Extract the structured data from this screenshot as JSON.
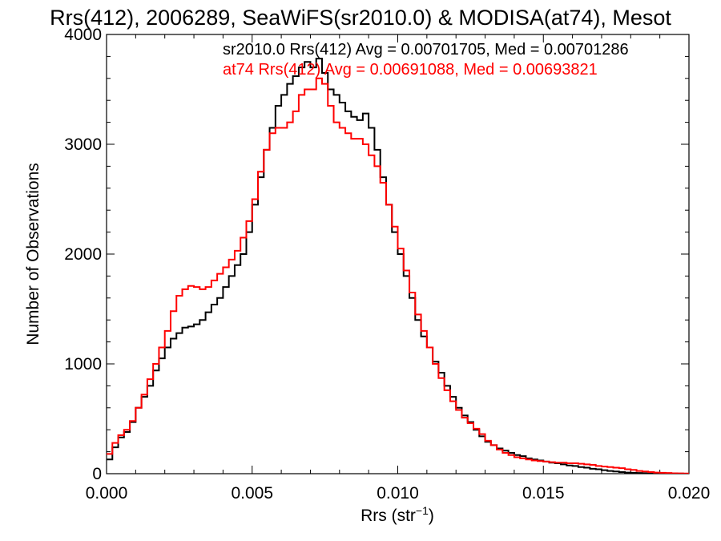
{
  "chart_data": {
    "type": "line",
    "title": "Rrs(412), 2006289, SeaWiFS(sr2010.0) & MODISA(at74), Mesot",
    "xlabel_base": "Rrs (str",
    "xlabel_sup": "−1",
    "xlabel_end": ")",
    "ylabel": "Number of Observations",
    "xlim": [
      0.0,
      0.02
    ],
    "ylim": [
      0,
      4000
    ],
    "xticks": [
      0.0,
      0.005,
      0.01,
      0.015,
      0.02
    ],
    "xtick_labels": [
      "0.000",
      "0.005",
      "0.010",
      "0.015",
      "0.020"
    ],
    "yticks": [
      0,
      1000,
      2000,
      3000,
      4000
    ],
    "ytick_labels": [
      "0",
      "1000",
      "2000",
      "3000",
      "4000"
    ],
    "grid": false,
    "legend_position": "top-right",
    "step": true,
    "series": [
      {
        "name": "sr2010.0 Rrs(412) Avg = 0.00701705, Med = 0.00701286",
        "color": "#000000",
        "points": [
          [
            0.0,
            130
          ],
          [
            0.0002,
            240
          ],
          [
            0.0004,
            330
          ],
          [
            0.0006,
            380
          ],
          [
            0.0008,
            470
          ],
          [
            0.001,
            600
          ],
          [
            0.0012,
            700
          ],
          [
            0.0014,
            800
          ],
          [
            0.0016,
            940
          ],
          [
            0.0018,
            1050
          ],
          [
            0.002,
            1150
          ],
          [
            0.0022,
            1230
          ],
          [
            0.0024,
            1280
          ],
          [
            0.0026,
            1330
          ],
          [
            0.0028,
            1340
          ],
          [
            0.003,
            1360
          ],
          [
            0.0032,
            1400
          ],
          [
            0.0034,
            1470
          ],
          [
            0.0036,
            1540
          ],
          [
            0.0038,
            1600
          ],
          [
            0.004,
            1700
          ],
          [
            0.0042,
            1800
          ],
          [
            0.0044,
            1900
          ],
          [
            0.0046,
            2000
          ],
          [
            0.0048,
            2200
          ],
          [
            0.005,
            2450
          ],
          [
            0.0052,
            2700
          ],
          [
            0.0054,
            2950
          ],
          [
            0.0056,
            3150
          ],
          [
            0.0058,
            3350
          ],
          [
            0.006,
            3450
          ],
          [
            0.0062,
            3550
          ],
          [
            0.0064,
            3620
          ],
          [
            0.0066,
            3700
          ],
          [
            0.0068,
            3750
          ],
          [
            0.007,
            3700
          ],
          [
            0.0072,
            3780
          ],
          [
            0.0074,
            3650
          ],
          [
            0.0076,
            3500
          ],
          [
            0.0078,
            3450
          ],
          [
            0.008,
            3380
          ],
          [
            0.0082,
            3300
          ],
          [
            0.0084,
            3250
          ],
          [
            0.0086,
            3220
          ],
          [
            0.0088,
            3280
          ],
          [
            0.009,
            3150
          ],
          [
            0.0092,
            2950
          ],
          [
            0.0094,
            2700
          ],
          [
            0.0096,
            2450
          ],
          [
            0.0098,
            2200
          ],
          [
            0.01,
            2000
          ],
          [
            0.0102,
            1800
          ],
          [
            0.0104,
            1600
          ],
          [
            0.0106,
            1400
          ],
          [
            0.0108,
            1250
          ],
          [
            0.011,
            1150
          ],
          [
            0.0112,
            1020
          ],
          [
            0.0114,
            920
          ],
          [
            0.0116,
            800
          ],
          [
            0.0118,
            700
          ],
          [
            0.012,
            600
          ],
          [
            0.0122,
            530
          ],
          [
            0.0124,
            470
          ],
          [
            0.0126,
            400
          ],
          [
            0.0128,
            340
          ],
          [
            0.013,
            290
          ],
          [
            0.0132,
            260
          ],
          [
            0.0134,
            230
          ],
          [
            0.0136,
            210
          ],
          [
            0.0138,
            190
          ],
          [
            0.014,
            170
          ],
          [
            0.0142,
            160
          ],
          [
            0.0144,
            140
          ],
          [
            0.0146,
            130
          ],
          [
            0.0148,
            120
          ],
          [
            0.015,
            110
          ],
          [
            0.0152,
            100
          ],
          [
            0.0154,
            95
          ],
          [
            0.0156,
            85
          ],
          [
            0.0158,
            75
          ],
          [
            0.016,
            70
          ],
          [
            0.0162,
            60
          ],
          [
            0.0164,
            55
          ],
          [
            0.0166,
            45
          ],
          [
            0.0168,
            40
          ],
          [
            0.017,
            32
          ],
          [
            0.0172,
            25
          ],
          [
            0.0174,
            20
          ],
          [
            0.0176,
            15
          ],
          [
            0.0178,
            10
          ],
          [
            0.018,
            8
          ],
          [
            0.0182,
            6
          ],
          [
            0.0184,
            5
          ],
          [
            0.0186,
            4
          ],
          [
            0.0188,
            3
          ],
          [
            0.019,
            2
          ],
          [
            0.0192,
            2
          ],
          [
            0.0194,
            1
          ],
          [
            0.0196,
            1
          ],
          [
            0.0198,
            0
          ]
        ]
      },
      {
        "name": "at74 Rrs(412) Avg = 0.00691088, Med = 0.00693821",
        "color": "#ff0000",
        "points": [
          [
            0.0,
            180
          ],
          [
            0.0002,
            280
          ],
          [
            0.0004,
            350
          ],
          [
            0.0006,
            400
          ],
          [
            0.0008,
            480
          ],
          [
            0.001,
            600
          ],
          [
            0.0012,
            720
          ],
          [
            0.0014,
            860
          ],
          [
            0.0016,
            1000
          ],
          [
            0.0018,
            1150
          ],
          [
            0.002,
            1300
          ],
          [
            0.0022,
            1480
          ],
          [
            0.0024,
            1620
          ],
          [
            0.0026,
            1680
          ],
          [
            0.0028,
            1710
          ],
          [
            0.003,
            1700
          ],
          [
            0.0032,
            1680
          ],
          [
            0.0034,
            1700
          ],
          [
            0.0036,
            1760
          ],
          [
            0.0038,
            1820
          ],
          [
            0.004,
            1880
          ],
          [
            0.0042,
            1950
          ],
          [
            0.0044,
            2030
          ],
          [
            0.0046,
            2150
          ],
          [
            0.0048,
            2300
          ],
          [
            0.005,
            2500
          ],
          [
            0.0052,
            2750
          ],
          [
            0.0054,
            2950
          ],
          [
            0.0056,
            3100
          ],
          [
            0.0058,
            3150
          ],
          [
            0.006,
            3150
          ],
          [
            0.0062,
            3200
          ],
          [
            0.0064,
            3300
          ],
          [
            0.0066,
            3450
          ],
          [
            0.0068,
            3500
          ],
          [
            0.007,
            3500
          ],
          [
            0.0072,
            3600
          ],
          [
            0.0074,
            3550
          ],
          [
            0.0076,
            3350
          ],
          [
            0.0078,
            3200
          ],
          [
            0.008,
            3150
          ],
          [
            0.0082,
            3100
          ],
          [
            0.0084,
            3050
          ],
          [
            0.0086,
            3050
          ],
          [
            0.0088,
            3000
          ],
          [
            0.009,
            2900
          ],
          [
            0.0092,
            2800
          ],
          [
            0.0094,
            2650
          ],
          [
            0.0096,
            2450
          ],
          [
            0.0098,
            2250
          ],
          [
            0.01,
            2050
          ],
          [
            0.0102,
            1850
          ],
          [
            0.0104,
            1650
          ],
          [
            0.0106,
            1450
          ],
          [
            0.0108,
            1300
          ],
          [
            0.011,
            1150
          ],
          [
            0.0112,
            1000
          ],
          [
            0.0114,
            870
          ],
          [
            0.0116,
            760
          ],
          [
            0.0118,
            660
          ],
          [
            0.012,
            580
          ],
          [
            0.0122,
            510
          ],
          [
            0.0124,
            460
          ],
          [
            0.0126,
            410
          ],
          [
            0.0128,
            360
          ],
          [
            0.013,
            300
          ],
          [
            0.0132,
            260
          ],
          [
            0.0134,
            220
          ],
          [
            0.0136,
            190
          ],
          [
            0.0138,
            170
          ],
          [
            0.014,
            150
          ],
          [
            0.0142,
            140
          ],
          [
            0.0144,
            130
          ],
          [
            0.0146,
            120
          ],
          [
            0.0148,
            115
          ],
          [
            0.015,
            110
          ],
          [
            0.0152,
            105
          ],
          [
            0.0154,
            100
          ],
          [
            0.0156,
            100
          ],
          [
            0.0158,
            95
          ],
          [
            0.016,
            95
          ],
          [
            0.0162,
            90
          ],
          [
            0.0164,
            85
          ],
          [
            0.0166,
            80
          ],
          [
            0.0168,
            70
          ],
          [
            0.017,
            65
          ],
          [
            0.0172,
            60
          ],
          [
            0.0174,
            55
          ],
          [
            0.0176,
            50
          ],
          [
            0.0178,
            40
          ],
          [
            0.018,
            35
          ],
          [
            0.0182,
            25
          ],
          [
            0.0184,
            20
          ],
          [
            0.0186,
            15
          ],
          [
            0.0188,
            10
          ],
          [
            0.019,
            8
          ],
          [
            0.0192,
            6
          ],
          [
            0.0194,
            4
          ],
          [
            0.0196,
            3
          ],
          [
            0.0198,
            2
          ]
        ]
      }
    ]
  }
}
